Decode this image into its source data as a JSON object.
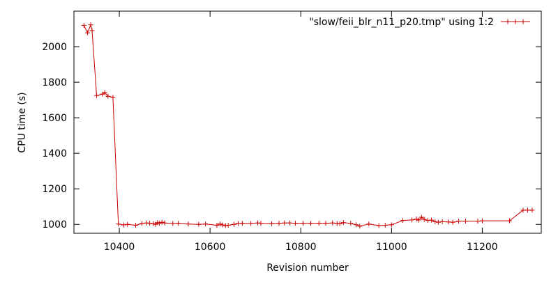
{
  "chart_data": {
    "type": "line",
    "title": "",
    "xlabel": "Revision number",
    "ylabel": "CPU time (s)",
    "xlim": [
      10300,
      11330
    ],
    "ylim": [
      950,
      2200
    ],
    "x_ticks": [
      10400,
      10600,
      10800,
      11000,
      11200
    ],
    "y_ticks": [
      1000,
      1200,
      1400,
      1600,
      1800,
      2000
    ],
    "grid": false,
    "legend_position": "top-right",
    "series": [
      {
        "name": "\"slow/feii_blr_n11_p20.tmp\" using 1:2",
        "color": "#cc0000",
        "marker": "plus",
        "points": [
          [
            10322,
            2120
          ],
          [
            10330,
            2078
          ],
          [
            10337,
            2123
          ],
          [
            10340,
            2090
          ],
          [
            10350,
            1725
          ],
          [
            10363,
            1733
          ],
          [
            10368,
            1742
          ],
          [
            10375,
            1721
          ],
          [
            10386,
            1715
          ],
          [
            10398,
            1002
          ],
          [
            10410,
            997
          ],
          [
            10418,
            1000
          ],
          [
            10436,
            995
          ],
          [
            10450,
            1005
          ],
          [
            10460,
            1008
          ],
          [
            10467,
            1006
          ],
          [
            10475,
            1004
          ],
          [
            10480,
            1000
          ],
          [
            10484,
            1010
          ],
          [
            10488,
            1006
          ],
          [
            10494,
            1012
          ],
          [
            10500,
            1008
          ],
          [
            10518,
            1005
          ],
          [
            10530,
            1006
          ],
          [
            10552,
            1002
          ],
          [
            10575,
            1000
          ],
          [
            10590,
            1002
          ],
          [
            10615,
            995
          ],
          [
            10622,
            1002
          ],
          [
            10628,
            997
          ],
          [
            10634,
            993
          ],
          [
            10640,
            995
          ],
          [
            10653,
            1000
          ],
          [
            10662,
            1005
          ],
          [
            10671,
            1006
          ],
          [
            10690,
            1005
          ],
          [
            10705,
            1008
          ],
          [
            10712,
            1006
          ],
          [
            10736,
            1004
          ],
          [
            10752,
            1006
          ],
          [
            10764,
            1008
          ],
          [
            10776,
            1008
          ],
          [
            10788,
            1006
          ],
          [
            10805,
            1006
          ],
          [
            10822,
            1006
          ],
          [
            10840,
            1006
          ],
          [
            10855,
            1006
          ],
          [
            10870,
            1008
          ],
          [
            10880,
            1005
          ],
          [
            10886,
            1004
          ],
          [
            10894,
            1010
          ],
          [
            10910,
            1006
          ],
          [
            10922,
            998
          ],
          [
            10930,
            990
          ],
          [
            10950,
            1002
          ],
          [
            10972,
            993
          ],
          [
            10986,
            995
          ],
          [
            11000,
            998
          ],
          [
            11025,
            1022
          ],
          [
            11045,
            1025
          ],
          [
            11055,
            1030
          ],
          [
            11060,
            1024
          ],
          [
            11066,
            1040
          ],
          [
            11072,
            1028
          ],
          [
            11080,
            1022
          ],
          [
            11088,
            1024
          ],
          [
            11096,
            1015
          ],
          [
            11103,
            1012
          ],
          [
            11112,
            1015
          ],
          [
            11125,
            1014
          ],
          [
            11135,
            1012
          ],
          [
            11148,
            1018
          ],
          [
            11163,
            1018
          ],
          [
            11190,
            1018
          ],
          [
            11200,
            1020
          ],
          [
            11260,
            1020
          ],
          [
            11290,
            1080
          ],
          [
            11300,
            1080
          ],
          [
            11310,
            1080
          ]
        ]
      }
    ]
  }
}
